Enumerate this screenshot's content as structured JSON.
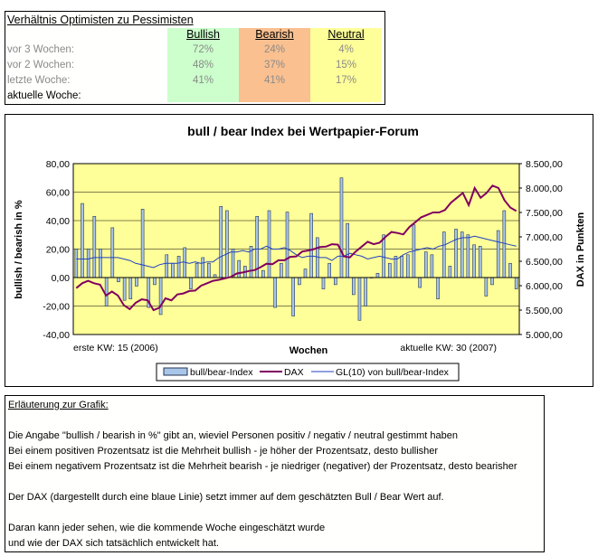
{
  "summary": {
    "title": "Verhältnis Optimisten zu Pessimisten",
    "columns": [
      {
        "label": "Bullish",
        "color": "#ccffcc"
      },
      {
        "label": "Bearish",
        "color": "#fac090"
      },
      {
        "label": "Neutral",
        "color": "#ffff99"
      }
    ],
    "rows": [
      {
        "label": "vor 3 Wochen:",
        "values": [
          "72%",
          "24%",
          "4%"
        ]
      },
      {
        "label": "vor 2 Wochen:",
        "values": [
          "48%",
          "37%",
          "15%"
        ]
      },
      {
        "label": "letzte Woche:",
        "values": [
          "41%",
          "41%",
          "17%"
        ]
      },
      {
        "label": "aktuelle Woche:",
        "values": [
          "",
          "",
          ""
        ]
      }
    ]
  },
  "chart_data": {
    "type": "bar",
    "title": "bull / bear Index bei Wertpapier-Forum",
    "xlabel": "Wochen",
    "ylabel": "bullish / bearish in %",
    "y2label": "DAX in Punkten",
    "x_start_label": "erste KW: 15 (2006)",
    "x_end_label": "aktuelle KW: 30 (2007)",
    "ylim": [
      -40,
      80
    ],
    "y2lim": [
      5000,
      8500
    ],
    "yticks": [
      "80,00",
      "60,00",
      "40,00",
      "20,00",
      "0,00",
      "-20,00",
      "-40,00"
    ],
    "y2ticks": [
      "8.500,00",
      "8.000,00",
      "7.500,00",
      "7.000,00",
      "6.500,00",
      "6.000,00",
      "5.500,00",
      "5.000,00"
    ],
    "legend": [
      "bull/bear-Index",
      "DAX",
      "GL(10) von bull/bear-Index"
    ],
    "legend_placement": "bottom",
    "colors": {
      "bars": "#a9c6e8",
      "bar_edge": "#223355",
      "dax": "#800060",
      "gl": "#2040c0",
      "plot_bg": "#ffff99"
    },
    "series": [
      {
        "name": "bull/bear-Index",
        "kind": "bar",
        "values": [
          20,
          52,
          20,
          43,
          20,
          -20,
          35,
          -3,
          -16,
          -15,
          -6,
          48,
          -21,
          -5,
          -26,
          16,
          10,
          15,
          21,
          -8,
          10,
          14,
          10,
          2,
          50,
          47,
          20,
          12,
          8,
          22,
          43,
          5,
          47,
          -21,
          10,
          46,
          -27,
          -5,
          6,
          45,
          28,
          -8,
          10,
          -5,
          70,
          38,
          -12,
          -30,
          -20,
          0,
          3,
          30,
          10,
          15,
          15,
          16,
          37,
          -7,
          18,
          16,
          -15,
          32,
          8,
          34,
          32,
          30,
          23,
          22,
          -13,
          -5,
          33,
          47,
          10,
          -8
        ]
      },
      {
        "name": "DAX",
        "kind": "line",
        "axis": "right",
        "values": [
          5950,
          6050,
          6100,
          6050,
          6020,
          5800,
          5880,
          5800,
          5600,
          5520,
          5650,
          5720,
          5700,
          5500,
          5550,
          5740,
          5700,
          5820,
          5840,
          5890,
          5900,
          6000,
          6050,
          6100,
          6120,
          6150,
          6180,
          6250,
          6270,
          6300,
          6320,
          6380,
          6450,
          6440,
          6520,
          6520,
          6590,
          6600,
          6700,
          6720,
          6750,
          6790,
          6800,
          6850,
          6840,
          6600,
          6580,
          6700,
          6800,
          6900,
          6850,
          6880,
          7000,
          7100,
          7080,
          7050,
          7200,
          7300,
          7400,
          7450,
          7500,
          7500,
          7550,
          7700,
          7800,
          7900,
          7650,
          8000,
          7800,
          7900,
          8050,
          8000,
          7750,
          7600,
          7530
        ]
      },
      {
        "name": "GL(10) von bull/bear-Index",
        "kind": "line",
        "values": [
          13,
          13,
          13,
          14,
          14,
          14,
          14,
          14,
          13,
          12,
          10,
          9,
          8,
          7,
          9,
          10,
          10,
          10,
          11,
          10,
          11,
          10,
          11,
          11,
          14,
          16,
          18,
          18,
          19,
          18,
          20,
          20,
          22,
          20,
          20,
          21,
          19,
          16,
          14,
          15,
          15,
          14,
          14,
          12,
          15,
          15,
          17,
          16,
          15,
          13,
          14,
          15,
          14,
          13,
          13,
          16,
          18,
          19,
          20,
          21,
          20,
          22,
          23,
          25,
          27,
          28,
          28,
          29,
          28,
          27,
          26,
          25,
          24,
          23,
          22
        ]
      }
    ]
  },
  "explanation": {
    "heading": "Erläuterung zur Grafik:",
    "lines": [
      "Die Angabe \"bullish / bearish in %\" gibt an, wieviel Personen positiv / negativ / neutral gestimmt haben",
      "Bei einem positiven Prozentsatz ist die Mehrheit bullish - je höher der Prozentsatz, desto bullisher",
      "Bei einem negativem Prozentsatz ist die Mehrheit bearish - je niedriger (negativer) der Prozentsatz, desto bearisher",
      "",
      "Der DAX (dargestellt durch eine blaue Linie) setzt immer auf dem geschätzten Bull / Bear Wert auf.",
      "",
      "Daran kann jeder sehen, wie die kommende Woche eingeschätzt wurde",
      "und wie der DAX sich tatsächlich entwickelt hat."
    ]
  }
}
